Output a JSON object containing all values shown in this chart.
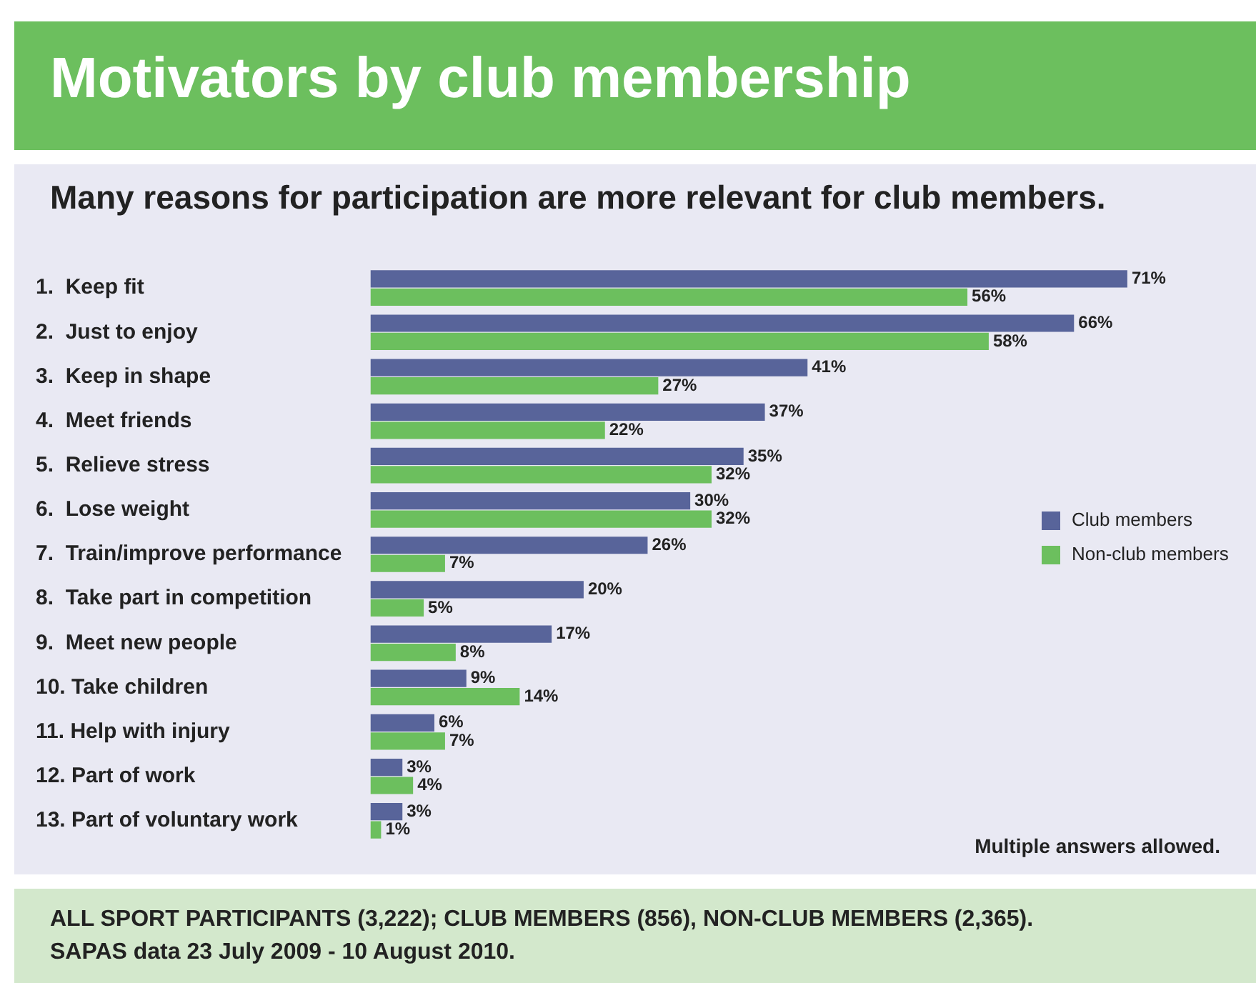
{
  "chart_data": {
    "type": "bar",
    "orientation": "horizontal",
    "title": "Motivators by club membership",
    "subtitle": "Many reasons for participation are more relevant for club members.",
    "categories": [
      "1.  Keep fit",
      "2.  Just to enjoy",
      "3.  Keep in shape",
      "4.  Meet friends",
      "5.  Relieve stress",
      "6.  Lose weight",
      "7.  Train/improve performance",
      "8.  Take part in competition",
      "9.  Meet new people",
      "10. Take children",
      "11. Help with injury",
      "12. Part of work",
      "13. Part of voluntary work"
    ],
    "series": [
      {
        "name": "Club members",
        "color": "#58649a",
        "values": [
          71,
          66,
          41,
          37,
          35,
          30,
          26,
          20,
          17,
          9,
          6,
          3,
          3
        ],
        "value_labels": [
          "71%",
          "66%",
          "41%",
          "37%",
          "35%",
          "30%",
          "26%",
          "20%",
          "17%",
          "9%",
          "6%",
          "3%",
          "3%"
        ]
      },
      {
        "name": "Non-club members",
        "color": "#6cbf5e",
        "values": [
          56,
          58,
          27,
          22,
          32,
          32,
          7,
          5,
          8,
          14,
          7,
          4,
          1
        ],
        "value_labels": [
          "56%",
          "58%",
          "27%",
          "22%",
          "32%",
          "32%",
          "7%",
          "5%",
          "8%",
          "14%",
          "7%",
          "4%",
          "1%"
        ]
      }
    ],
    "legend": "right",
    "grid": false,
    "tick_labels": "y",
    "annotations": [
      "Multiple answers allowed.",
      "ALL SPORT PARTICIPANTS (3,222); CLUB MEMBERS (856), NON-CLUB MEMBERS (2,365).",
      "SAPAS data 23 July 2009 - 10 August 2010."
    ]
  }
}
